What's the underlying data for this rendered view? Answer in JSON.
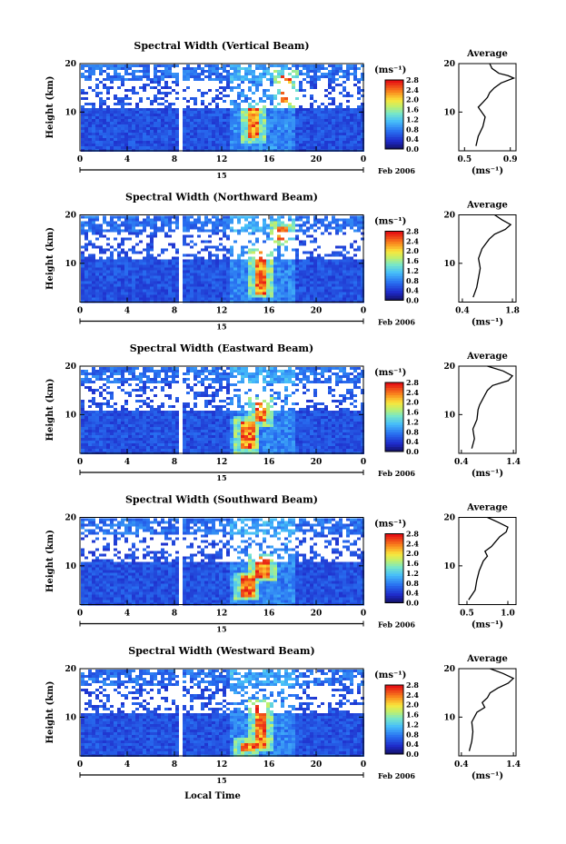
{
  "figure": {
    "xlabel": "Local Time",
    "date_label": "Feb 2006",
    "date_day": "15",
    "ylabel": "Height (km)",
    "colorbar_unit": "(ms⁻¹)",
    "avg_title": "Average",
    "avg_unit": "(ms⁻¹)"
  },
  "chart_data": [
    {
      "type": "heatmap",
      "title": "Spectral Width (Vertical Beam)",
      "xlabel": "Local Time",
      "ylabel": "Height (km)",
      "x_ticks": [
        "0",
        "4",
        "8",
        "12",
        "16",
        "20",
        "0"
      ],
      "xlim": [
        0,
        24
      ],
      "y_ticks": [
        "10",
        "20"
      ],
      "ylim": [
        2,
        20
      ],
      "colorbar": {
        "unit": "(ms⁻¹)",
        "ticks": [
          "2.8",
          "2.4",
          "2.0",
          "1.6",
          "1.2",
          "0.8",
          "0.4",
          "0.0"
        ],
        "range": [
          0,
          2.8
        ]
      },
      "data_gap_hour": 8.4,
      "intense_features": [
        {
          "hour": 14.5,
          "height_from": 5,
          "height_to": 11
        },
        {
          "hour": 17.3,
          "height_from": 12,
          "height_to": 18
        }
      ],
      "average_profile": {
        "title": "Average",
        "xlabel": "(ms⁻¹)",
        "x_ticks": [
          "0.5",
          "0.9"
        ],
        "xlim": [
          0.45,
          0.95
        ],
        "heights": [
          3,
          5,
          7,
          9,
          11,
          12,
          13,
          14,
          15,
          16,
          17,
          17.5,
          18,
          19,
          20
        ],
        "values": [
          0.6,
          0.62,
          0.66,
          0.68,
          0.62,
          0.66,
          0.7,
          0.72,
          0.76,
          0.82,
          0.93,
          0.88,
          0.8,
          0.74,
          0.72
        ]
      }
    },
    {
      "type": "heatmap",
      "title": "Spectral Width (Northward Beam)",
      "xlabel": "Local Time",
      "ylabel": "Height (km)",
      "x_ticks": [
        "0",
        "4",
        "8",
        "12",
        "16",
        "20",
        "0"
      ],
      "xlim": [
        0,
        24
      ],
      "y_ticks": [
        "10",
        "20"
      ],
      "ylim": [
        2,
        20
      ],
      "colorbar": {
        "unit": "(ms⁻¹)",
        "ticks": [
          "2.8",
          "2.4",
          "2.0",
          "1.6",
          "1.2",
          "0.8",
          "0.4",
          "0.0"
        ],
        "range": [
          0,
          2.8
        ]
      },
      "data_gap_hour": 8.4,
      "intense_features": [
        {
          "hour": 15.2,
          "height_from": 4,
          "height_to": 13
        },
        {
          "hour": 17.0,
          "height_from": 15,
          "height_to": 18
        }
      ],
      "average_profile": {
        "title": "Average",
        "xlabel": "(ms⁻¹)",
        "x_ticks": [
          "0.4",
          "1.8"
        ],
        "xlim": [
          0.3,
          1.9
        ],
        "heights": [
          3,
          5,
          7,
          9,
          11,
          12,
          13,
          14,
          15,
          16,
          17,
          18,
          19,
          20
        ],
        "values": [
          0.7,
          0.8,
          0.85,
          0.9,
          0.85,
          0.9,
          0.95,
          1.05,
          1.15,
          1.3,
          1.6,
          1.75,
          1.5,
          1.3
        ]
      }
    },
    {
      "type": "heatmap",
      "title": "Spectral Width (Eastward Beam)",
      "xlabel": "Local Time",
      "ylabel": "Height (km)",
      "x_ticks": [
        "0",
        "4",
        "8",
        "12",
        "16",
        "20",
        "0"
      ],
      "xlim": [
        0,
        24
      ],
      "y_ticks": [
        "10",
        "20"
      ],
      "ylim": [
        2,
        20
      ],
      "colorbar": {
        "unit": "(ms⁻¹)",
        "ticks": [
          "2.8",
          "2.4",
          "2.0",
          "1.6",
          "1.2",
          "0.8",
          "0.4",
          "0.0"
        ],
        "range": [
          0,
          2.8
        ]
      },
      "data_gap_hour": 8.4,
      "intense_features": [
        {
          "hour": 14.0,
          "height_from": 3,
          "height_to": 9
        },
        {
          "hour": 15.2,
          "height_from": 9,
          "height_to": 13
        }
      ],
      "average_profile": {
        "title": "Average",
        "xlabel": "(ms⁻¹)",
        "x_ticks": [
          "0.4",
          "1.4"
        ],
        "xlim": [
          0.35,
          1.45
        ],
        "heights": [
          3,
          5,
          7,
          9,
          11,
          12,
          13,
          14,
          15,
          16,
          17,
          18,
          19,
          20
        ],
        "values": [
          0.6,
          0.65,
          0.62,
          0.7,
          0.72,
          0.75,
          0.8,
          0.85,
          0.9,
          1.0,
          1.3,
          1.38,
          1.2,
          0.9
        ]
      }
    },
    {
      "type": "heatmap",
      "title": "Spectral Width (Southward Beam)",
      "xlabel": "Local Time",
      "ylabel": "Height (km)",
      "x_ticks": [
        "0",
        "4",
        "8",
        "12",
        "16",
        "20",
        "0"
      ],
      "xlim": [
        0,
        24
      ],
      "y_ticks": [
        "10",
        "20"
      ],
      "ylim": [
        2,
        20
      ],
      "colorbar": {
        "unit": "(ms⁻¹)",
        "ticks": [
          "2.8",
          "2.4",
          "2.0",
          "1.6",
          "1.2",
          "0.8",
          "0.4",
          "0.0"
        ],
        "range": [
          0,
          2.8
        ]
      },
      "data_gap_hour": 8.4,
      "intense_features": [
        {
          "hour": 14.0,
          "height_from": 4,
          "height_to": 8
        },
        {
          "hour": 15.3,
          "height_from": 8,
          "height_to": 12
        }
      ],
      "average_profile": {
        "title": "Average",
        "xlabel": "(ms⁻¹)",
        "x_ticks": [
          "0.5",
          "1.0"
        ],
        "xlim": [
          0.4,
          1.1
        ],
        "heights": [
          3,
          5,
          7,
          9,
          11,
          12,
          13,
          14,
          15,
          16,
          17,
          18,
          19,
          20
        ],
        "values": [
          0.52,
          0.6,
          0.62,
          0.65,
          0.7,
          0.75,
          0.72,
          0.8,
          0.85,
          0.9,
          0.98,
          1.0,
          0.88,
          0.75
        ]
      }
    },
    {
      "type": "heatmap",
      "title": "Spectral Width (Westward Beam)",
      "xlabel": "Local Time",
      "ylabel": "Height (km)",
      "x_ticks": [
        "0",
        "4",
        "8",
        "12",
        "16",
        "20",
        "0"
      ],
      "xlim": [
        0,
        24
      ],
      "y_ticks": [
        "10",
        "20"
      ],
      "ylim": [
        2,
        20
      ],
      "colorbar": {
        "unit": "(ms⁻¹)",
        "ticks": [
          "2.8",
          "2.4",
          "2.0",
          "1.6",
          "1.2",
          "0.8",
          "0.4",
          "0.0"
        ],
        "range": [
          0,
          2.8
        ]
      },
      "data_gap_hour": 8.4,
      "intense_features": [
        {
          "hour": 15.2,
          "height_from": 4,
          "height_to": 13
        },
        {
          "hour": 14.0,
          "height_from": 3,
          "height_to": 5
        }
      ],
      "average_profile": {
        "title": "Average",
        "xlabel": "(ms⁻¹)",
        "x_ticks": [
          "0.4",
          "1.4"
        ],
        "xlim": [
          0.35,
          1.45
        ],
        "heights": [
          3,
          5,
          7,
          9,
          11,
          12,
          13,
          14,
          15,
          16,
          17,
          18,
          19,
          20
        ],
        "values": [
          0.55,
          0.6,
          0.62,
          0.6,
          0.7,
          0.85,
          0.8,
          0.9,
          0.95,
          1.1,
          1.3,
          1.4,
          1.2,
          0.95
        ]
      }
    }
  ]
}
